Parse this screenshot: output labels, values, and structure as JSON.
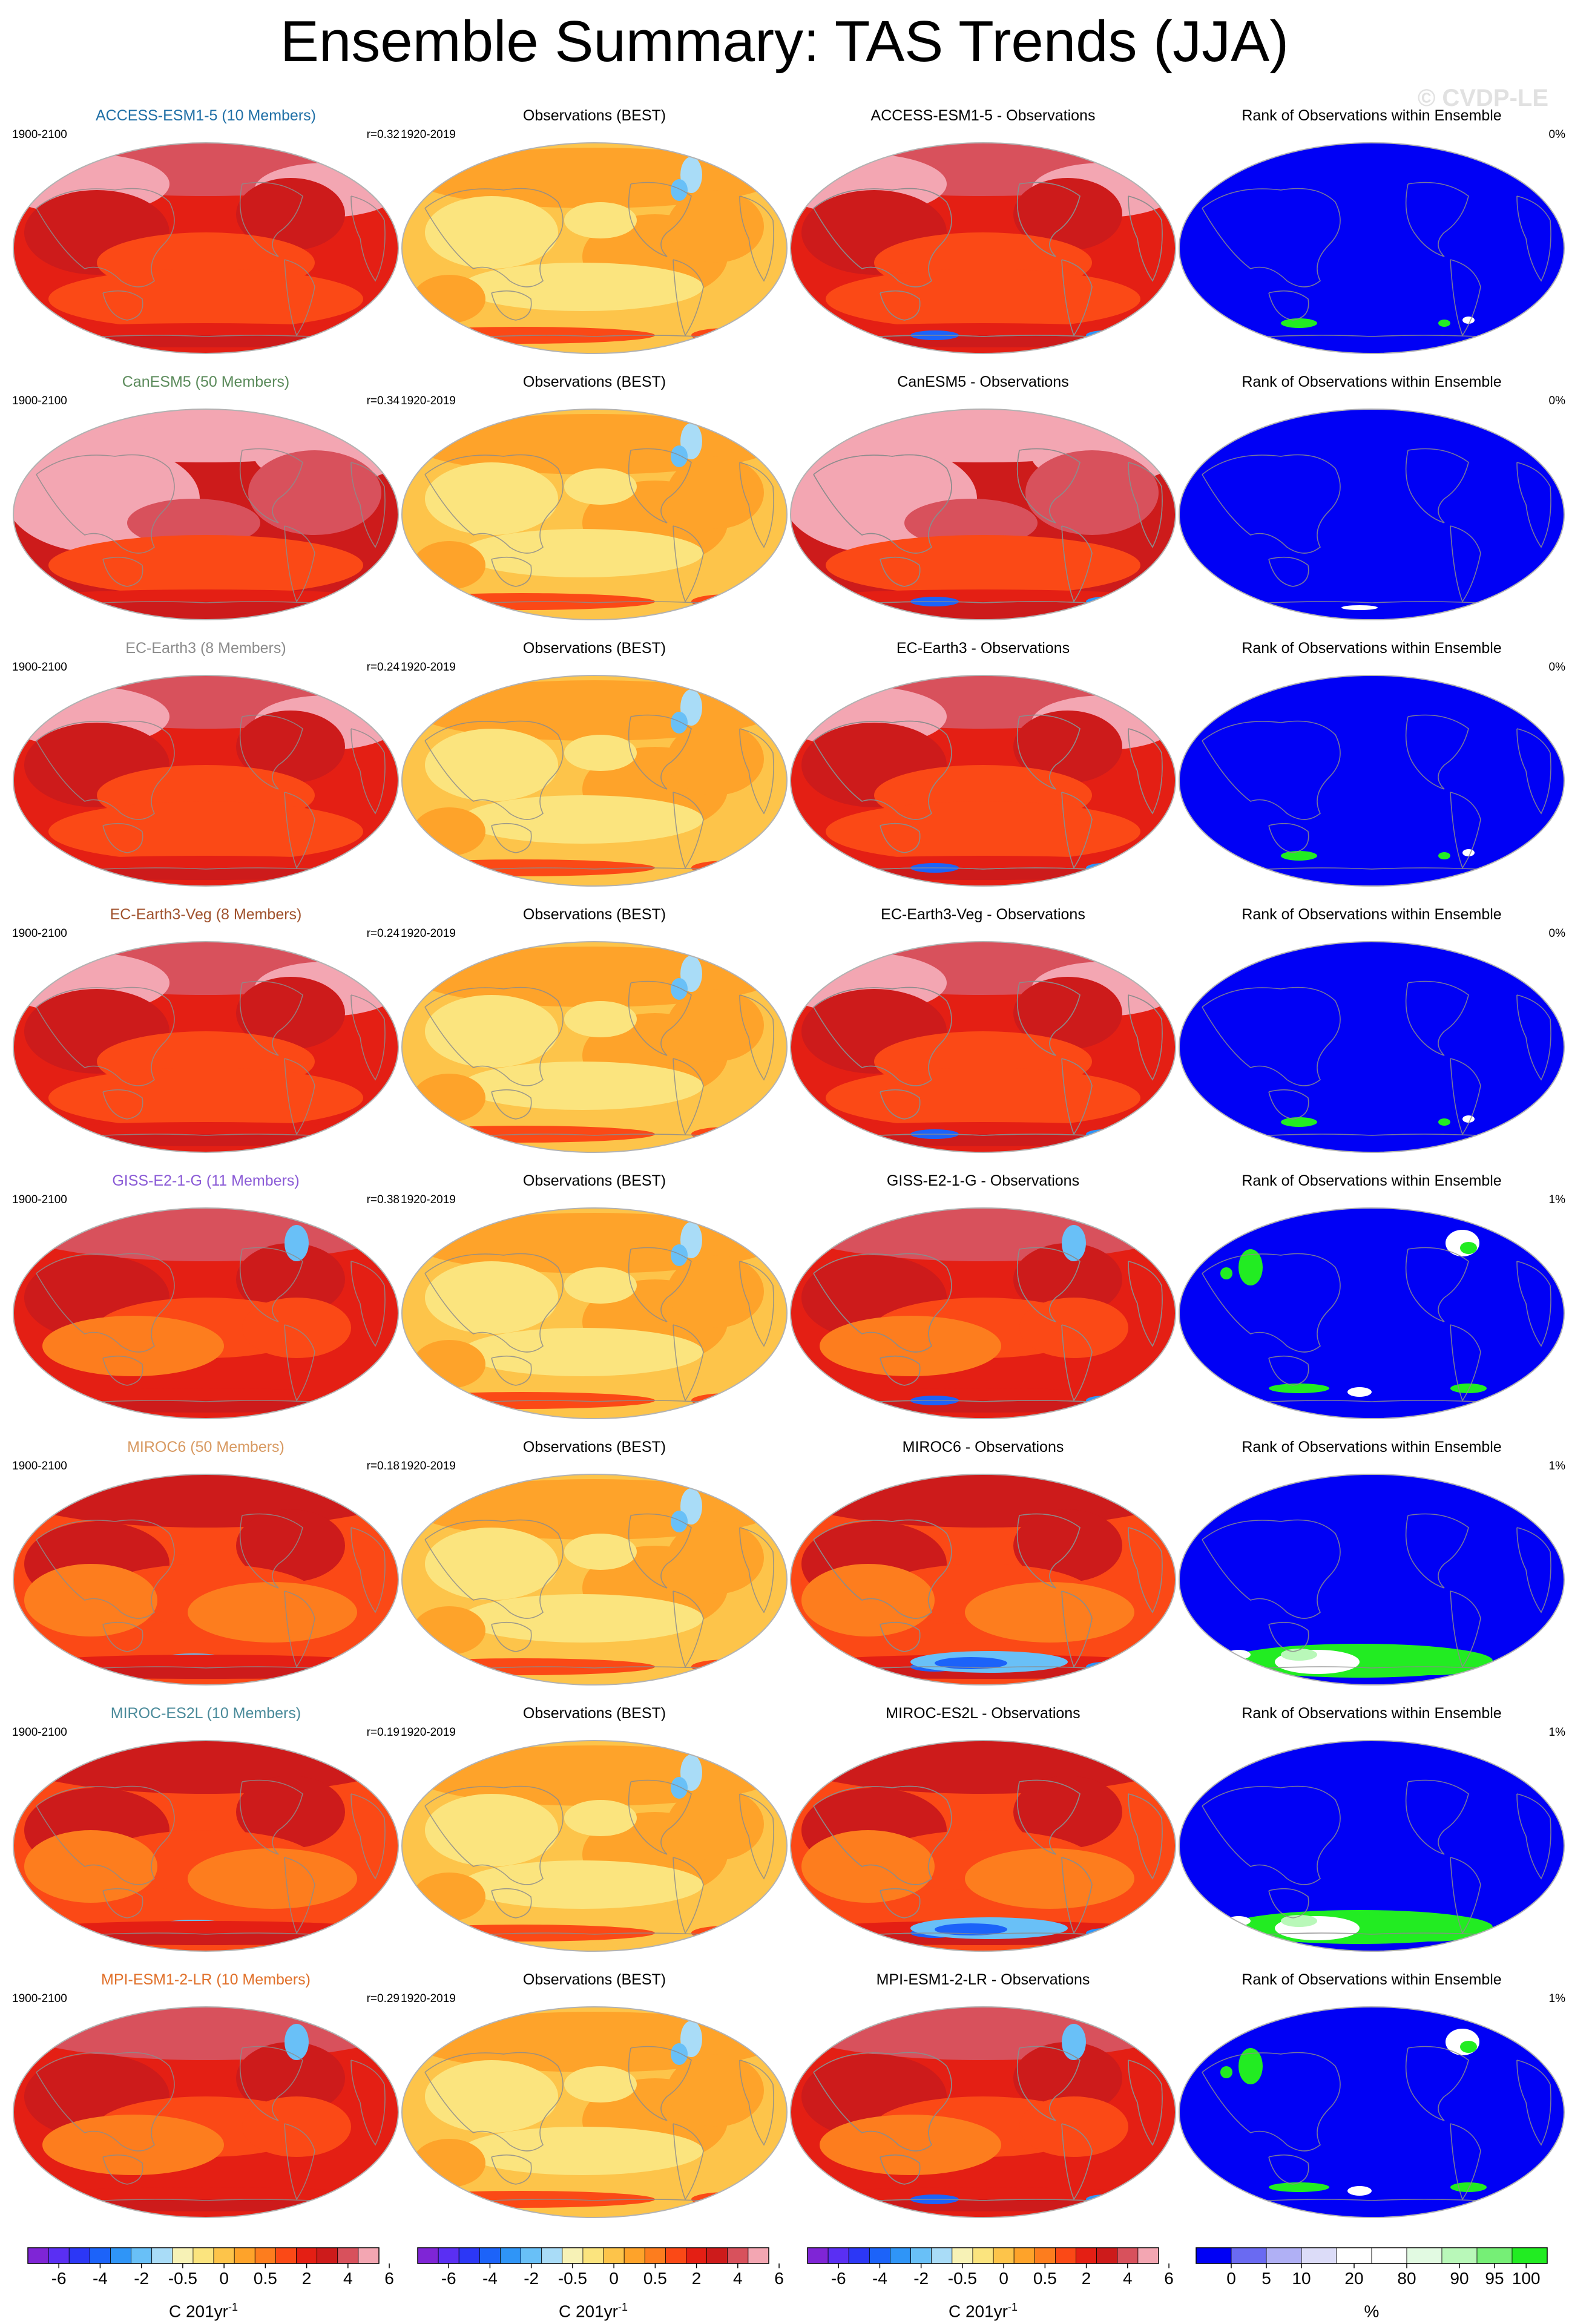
{
  "figure": {
    "title": "Ensemble Summary: TAS Trends (JJA)",
    "watermark": "© CVDP-LE",
    "obs_title": "Observations (BEST)",
    "rank_title": "Rank of Observations within Ensemble"
  },
  "colors": {
    "trend_scale": [
      "#7f25d6",
      "#5a2ff3",
      "#2c37f6",
      "#1c63f9",
      "#2f95f7",
      "#69c0f7",
      "#a9dcf7",
      "#f7f2b6",
      "#fbe47e",
      "#fdc44a",
      "#fea32a",
      "#fd7d1e",
      "#fb4916",
      "#e41f14",
      "#cd1b1b",
      "#d8515c",
      "#f3a6b2"
    ],
    "rank_scale": [
      "#0000f5",
      "#6a6af2",
      "#b0b0f5",
      "#dcdcf8",
      "#ffffff",
      "#ffffff",
      "#e2fae2",
      "#b9f8b9",
      "#76ef76",
      "#22ec22"
    ],
    "map_outline": "#b2b2b2",
    "coast": "#8c8c8c"
  },
  "colorbars": [
    {
      "type": "trend",
      "tick_labels": [
        "-6",
        "-4",
        "-2",
        "-0.5",
        "0",
        "0.5",
        "2",
        "4",
        "6"
      ],
      "unit_base": "C 201yr",
      "unit_exp": "-1"
    },
    {
      "type": "trend",
      "tick_labels": [
        "-6",
        "-4",
        "-2",
        "-0.5",
        "0",
        "0.5",
        "2",
        "4",
        "6"
      ],
      "unit_base": "C 201yr",
      "unit_exp": "-1"
    },
    {
      "type": "trend",
      "tick_labels": [
        "-6",
        "-4",
        "-2",
        "-0.5",
        "0",
        "0.5",
        "2",
        "4",
        "6"
      ],
      "unit_base": "C 201yr",
      "unit_exp": "-1"
    },
    {
      "type": "rank",
      "tick_labels": [
        "0",
        "5",
        "10",
        "20",
        "80",
        "90",
        "95",
        "100"
      ],
      "unit_base": "%",
      "unit_exp": ""
    }
  ],
  "rows": [
    {
      "model_label": "ACCESS-ESM1-5 (10 Members)",
      "title_color": "#1f6fa6",
      "model_period": "1900-2100",
      "r_value": "r=0.32",
      "obs_period": "1920-2019",
      "diff_title": "ACCESS-ESM1-5 - Observations",
      "rank_pct": "0%",
      "pattern": {
        "model": "warm",
        "diff": "warm",
        "rank": "low"
      }
    },
    {
      "model_label": "CanESM5 (50 Members)",
      "title_color": "#5a8a5a",
      "model_period": "1900-2100",
      "r_value": "r=0.34",
      "obs_period": "1920-2019",
      "diff_title": "CanESM5 - Observations",
      "rank_pct": "0%",
      "pattern": {
        "model": "hot",
        "diff": "hot",
        "rank": "lowest"
      }
    },
    {
      "model_label": "EC-Earth3 (8 Members)",
      "title_color": "#8c8c8c",
      "model_period": "1900-2100",
      "r_value": "r=0.24",
      "obs_period": "1920-2019",
      "diff_title": "EC-Earth3 - Observations",
      "rank_pct": "0%",
      "pattern": {
        "model": "warm",
        "diff": "warm",
        "rank": "low"
      }
    },
    {
      "model_label": "EC-Earth3-Veg (8 Members)",
      "title_color": "#a0522d",
      "model_period": "1900-2100",
      "r_value": "r=0.24",
      "obs_period": "1920-2019",
      "diff_title": "EC-Earth3-Veg - Observations",
      "rank_pct": "0%",
      "pattern": {
        "model": "warm",
        "diff": "warm",
        "rank": "low"
      }
    },
    {
      "model_label": "GISS-E2-1-G (11 Members)",
      "title_color": "#8a5ad6",
      "model_period": "1900-2100",
      "r_value": "r=0.38",
      "obs_period": "1920-2019",
      "diff_title": "GISS-E2-1-G - Observations",
      "rank_pct": "1%",
      "pattern": {
        "model": "mid",
        "diff": "mid",
        "rank": "some"
      }
    },
    {
      "model_label": "MIROC6 (50 Members)",
      "title_color": "#d89a62",
      "model_period": "1900-2100",
      "r_value": "r=0.18",
      "obs_period": "1920-2019",
      "diff_title": "MIROC6 - Observations",
      "rank_pct": "1%",
      "pattern": {
        "model": "cool",
        "diff": "cool",
        "rank": "high"
      }
    },
    {
      "model_label": "MIROC-ES2L (10 Members)",
      "title_color": "#4a8a9a",
      "model_period": "1900-2100",
      "r_value": "r=0.19",
      "obs_period": "1920-2019",
      "diff_title": "MIROC-ES2L - Observations",
      "rank_pct": "1%",
      "pattern": {
        "model": "cool",
        "diff": "cool",
        "rank": "high"
      }
    },
    {
      "model_label": "MPI-ESM1-2-LR (10 Members)",
      "title_color": "#e0702a",
      "model_period": "1900-2100",
      "r_value": "r=0.29",
      "obs_period": "1920-2019",
      "diff_title": "MPI-ESM1-2-LR - Observations",
      "rank_pct": "1%",
      "pattern": {
        "model": "mid",
        "diff": "mid",
        "rank": "some"
      }
    }
  ]
}
